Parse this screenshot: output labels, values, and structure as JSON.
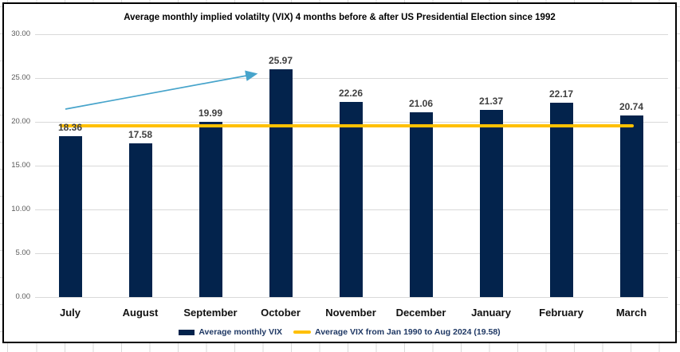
{
  "chart_data": {
    "type": "bar",
    "title": "Average monthly implied volatilty (VIX) 4 months before & after US Presidential Election since 1992",
    "categories": [
      "July",
      "August",
      "September",
      "October",
      "November",
      "December",
      "January",
      "February",
      "March"
    ],
    "series": [
      {
        "name": "Average monthly VIX",
        "type": "bar",
        "color": "#03234c",
        "values": [
          18.36,
          17.58,
          19.99,
          25.97,
          22.26,
          21.06,
          21.37,
          22.17,
          20.74
        ]
      },
      {
        "name": "Average VIX from Jan 1990 to Aug 2024 (19.58)",
        "type": "reference-line",
        "color": "#ffc000",
        "value": 19.58
      }
    ],
    "value_labels": [
      "18.36",
      "17.58",
      "19.99",
      "25.97",
      "22.26",
      "21.06",
      "21.37",
      "22.17",
      "20.74"
    ],
    "ylim": [
      0,
      30
    ],
    "yticks": [
      "30.00",
      "25.00",
      "20.00",
      "15.00",
      "10.00",
      "5.00",
      "0.00"
    ],
    "grid": true,
    "legend_position": "bottom",
    "annotation": {
      "type": "arrow",
      "color": "#47a4cb",
      "points_to": "October"
    },
    "colors": {
      "bar": "#03234c",
      "reference_line": "#ffc000",
      "arrow": "#47a4cb",
      "gridline": "#d9d9d9",
      "axis_text": "#595959",
      "label_text": "#3f3f3f",
      "legend_text": "#1f3864"
    }
  }
}
